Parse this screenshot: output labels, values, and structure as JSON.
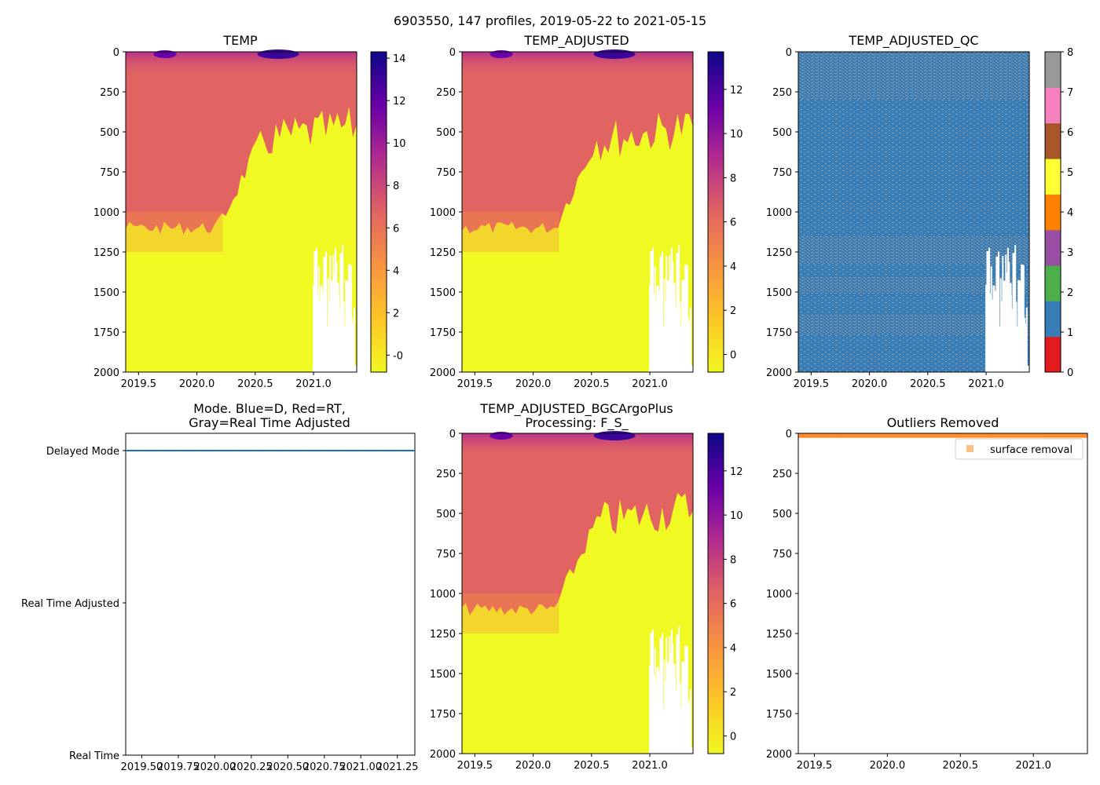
{
  "suptitle": "6903550, 147 profiles, 2019-05-22 to 2021-05-15",
  "colors": {
    "plasma_r": [
      "#f0f921",
      "#fdc527",
      "#f89540",
      "#e16462",
      "#b12a90",
      "#6a00a8",
      "#0d0887"
    ],
    "qc": [
      "#e41a1c",
      "#377eb8",
      "#4daf4a",
      "#984ea3",
      "#ff7f00",
      "#ffff33",
      "#a65628",
      "#f781bf",
      "#999999"
    ],
    "mode_line": "#1f77b4",
    "surface_removal": "#ff7f0e"
  },
  "chart_data": [
    {
      "id": "temp",
      "type": "heatmap",
      "title": "TEMP",
      "x_ticks": [
        "2019.5",
        "2020.0",
        "2020.5",
        "2021.0"
      ],
      "x_tick_values": [
        2019.5,
        2020.0,
        2020.5,
        2021.0
      ],
      "xlim": [
        2019.39,
        2021.37
      ],
      "y_ticks": [
        "0",
        "250",
        "500",
        "750",
        "1000",
        "1250",
        "1500",
        "1750",
        "2000"
      ],
      "ylim": [
        2000,
        0
      ],
      "colorbar_ticks": [
        "-0",
        "2",
        "4",
        "6",
        "8",
        "10",
        "12",
        "14"
      ],
      "colorbar_values": [
        0,
        2,
        4,
        6,
        8,
        10,
        12,
        14
      ],
      "colorbar_range": [
        -0.8,
        14.3
      ],
      "description_values": {
        "warm_layer_temp": 5.2,
        "deep_temp": -0.3,
        "transition_depth_early": 1100,
        "transition_depth_late": 400,
        "transition_date": 2020.3
      }
    },
    {
      "id": "temp_adjusted",
      "type": "heatmap",
      "title": "TEMP_ADJUSTED",
      "x_ticks": [
        "2019.5",
        "2020.0",
        "2020.5",
        "2021.0"
      ],
      "x_tick_values": [
        2019.5,
        2020.0,
        2020.5,
        2021.0
      ],
      "xlim": [
        2019.39,
        2021.37
      ],
      "y_ticks": [
        "0",
        "250",
        "500",
        "750",
        "1000",
        "1250",
        "1500",
        "1750",
        "2000"
      ],
      "ylim": [
        2000,
        0
      ],
      "colorbar_ticks": [
        "0",
        "2",
        "4",
        "6",
        "8",
        "10",
        "12"
      ],
      "colorbar_values": [
        0,
        2,
        4,
        6,
        8,
        10,
        12
      ],
      "colorbar_range": [
        -0.8,
        13.7
      ]
    },
    {
      "id": "temp_adjusted_qc",
      "type": "heatmap",
      "title": "TEMP_ADJUSTED_QC",
      "x_ticks": [
        "2019.5",
        "2020.0",
        "2020.5",
        "2021.0"
      ],
      "x_tick_values": [
        2019.5,
        2020.0,
        2020.5,
        2021.0
      ],
      "xlim": [
        2019.39,
        2021.37
      ],
      "y_ticks": [
        "0",
        "250",
        "500",
        "750",
        "1000",
        "1250",
        "1500",
        "1750",
        "2000"
      ],
      "ylim": [
        2000,
        0
      ],
      "colorbar_ticks": [
        "0",
        "1",
        "2",
        "3",
        "4",
        "5",
        "6",
        "7",
        "8"
      ],
      "colorbar_values": [
        0,
        1,
        2,
        3,
        4,
        5,
        6,
        7,
        8
      ],
      "colorbar_range": [
        0,
        8
      ],
      "dominant_flag": 1,
      "secondary_flag": 8
    },
    {
      "id": "mode",
      "type": "scatter",
      "title_line1": "Mode. Blue=D, Red=RT,",
      "title_line2": "Gray=Real Time Adjusted",
      "x_ticks": [
        "2019.50",
        "2019.75",
        "2020.00",
        "2020.25",
        "2020.50",
        "2020.75",
        "2021.00",
        "2021.25"
      ],
      "x_tick_values": [
        2019.5,
        2019.75,
        2020.0,
        2020.25,
        2020.5,
        2020.75,
        2021.0,
        2021.25
      ],
      "xlim": [
        2019.39,
        2021.37
      ],
      "y_categories": [
        "Real Time",
        "Real Time Adjusted",
        "Delayed Mode"
      ],
      "series": [
        {
          "name": "Delayed Mode",
          "category": "Delayed Mode",
          "x_start": 2019.39,
          "x_end": 2021.37,
          "count": 147
        }
      ]
    },
    {
      "id": "temp_bgc",
      "type": "heatmap",
      "title_line1": "TEMP_ADJUSTED_BGCArgoPlus",
      "title_line2": "Processing: F_S_",
      "x_ticks": [
        "2019.5",
        "2020.0",
        "2020.5",
        "2021.0"
      ],
      "x_tick_values": [
        2019.5,
        2020.0,
        2020.5,
        2021.0
      ],
      "xlim": [
        2019.39,
        2021.37
      ],
      "y_ticks": [
        "0",
        "250",
        "500",
        "750",
        "1000",
        "1250",
        "1500",
        "1750",
        "2000"
      ],
      "ylim": [
        2000,
        0
      ],
      "colorbar_ticks": [
        "0",
        "2",
        "4",
        "6",
        "8",
        "10",
        "12"
      ],
      "colorbar_values": [
        0,
        2,
        4,
        6,
        8,
        10,
        12
      ],
      "colorbar_range": [
        -0.8,
        13.7
      ]
    },
    {
      "id": "outliers",
      "type": "scatter",
      "title": "Outliers Removed",
      "x_ticks": [
        "2019.5",
        "2020.0",
        "2020.5",
        "2021.0"
      ],
      "x_tick_values": [
        2019.5,
        2020.0,
        2020.5,
        2021.0
      ],
      "xlim": [
        2019.39,
        2021.37
      ],
      "y_ticks": [
        "0",
        "250",
        "500",
        "750",
        "1000",
        "1250",
        "1500",
        "1750",
        "2000"
      ],
      "ylim": [
        2000,
        0
      ],
      "legend": [
        "surface removal"
      ],
      "legend_position": "top-right",
      "series": [
        {
          "name": "surface removal",
          "depth_range": [
            0,
            25
          ]
        }
      ]
    }
  ]
}
